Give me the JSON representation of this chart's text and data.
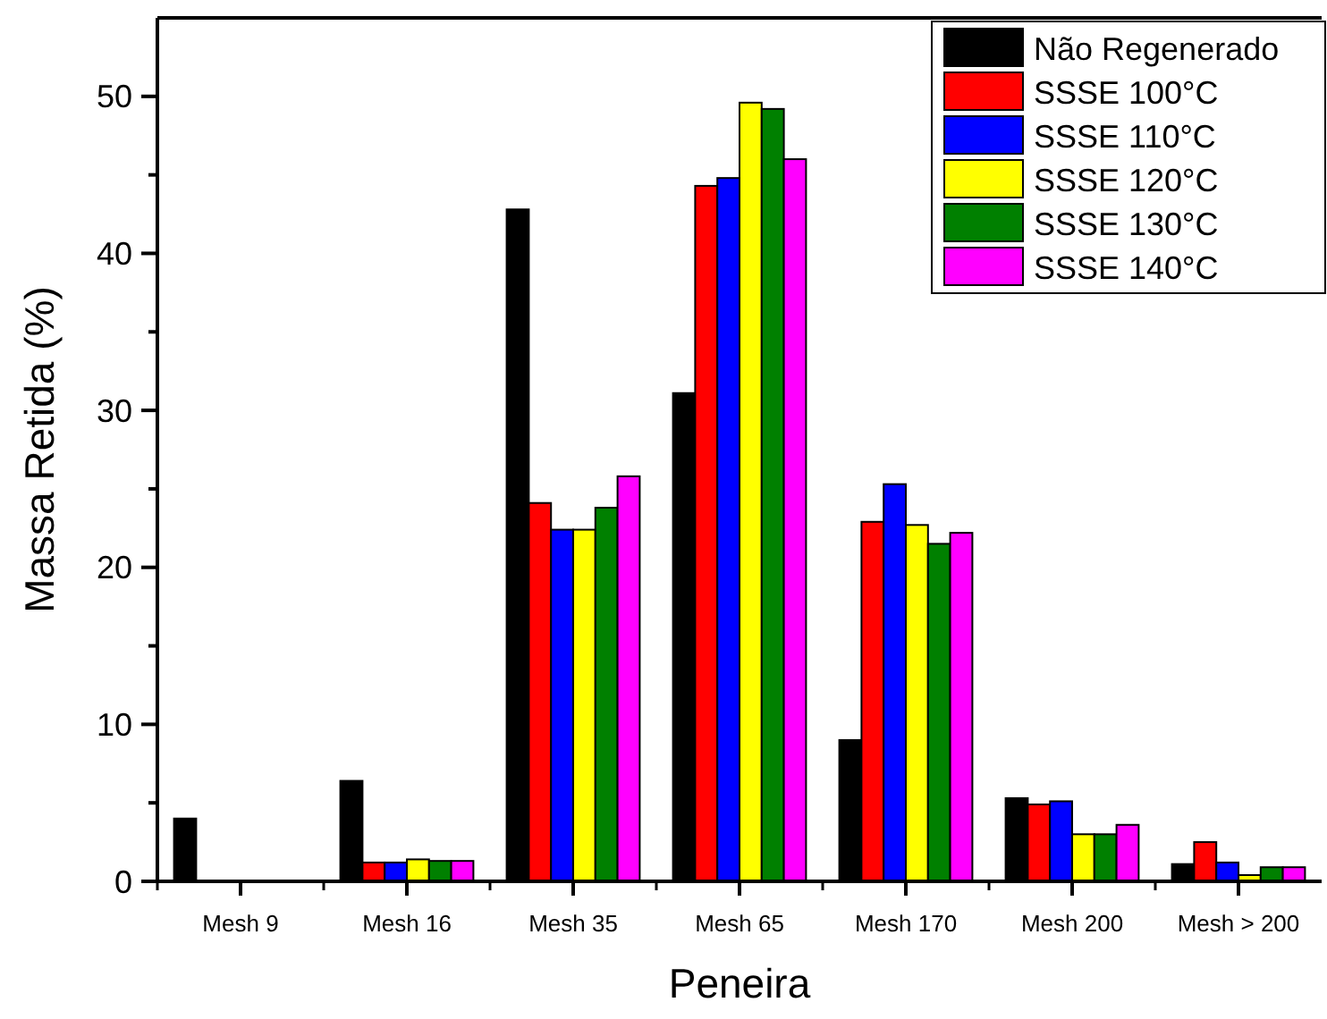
{
  "chart_data": {
    "type": "bar",
    "xlabel": "Peneira",
    "ylabel": "Massa Retida (%)",
    "categories": [
      "Mesh 9",
      "Mesh 16",
      "Mesh 35",
      "Mesh 65",
      "Mesh 170",
      "Mesh 200",
      "Mesh > 200"
    ],
    "series": [
      {
        "name": "Não Regenerado",
        "color": "#000000",
        "values": [
          4.0,
          6.4,
          42.8,
          31.1,
          9.0,
          5.3,
          1.1
        ]
      },
      {
        "name": "SSSE 100°C",
        "color": "#ff0000",
        "values": [
          0,
          1.2,
          24.1,
          44.3,
          22.9,
          4.9,
          2.5
        ]
      },
      {
        "name": "SSSE 110°C",
        "color": "#0000ff",
        "values": [
          0,
          1.2,
          22.4,
          44.8,
          25.3,
          5.1,
          1.2
        ]
      },
      {
        "name": "SSSE 120°C",
        "color": "#ffff00",
        "values": [
          0,
          1.4,
          22.4,
          49.6,
          22.7,
          3.0,
          0.4
        ]
      },
      {
        "name": "SSSE 130°C",
        "color": "#008000",
        "values": [
          0,
          1.3,
          23.8,
          49.2,
          21.5,
          3.0,
          0.9
        ]
      },
      {
        "name": "SSSE 140°C",
        "color": "#ff00ff",
        "values": [
          0,
          1.3,
          25.8,
          46.0,
          22.2,
          3.6,
          0.9
        ]
      }
    ],
    "ylim": [
      0,
      55
    ],
    "yticks": [
      0,
      {
        "value": 5,
        "label": null
      },
      10,
      {
        "value": 15,
        "label": null
      },
      20,
      {
        "value": 25,
        "label": null
      },
      30,
      {
        "value": 35,
        "label": null
      },
      40,
      {
        "value": 45,
        "label": null
      },
      50
    ],
    "legend": "top right",
    "grid": false
  }
}
